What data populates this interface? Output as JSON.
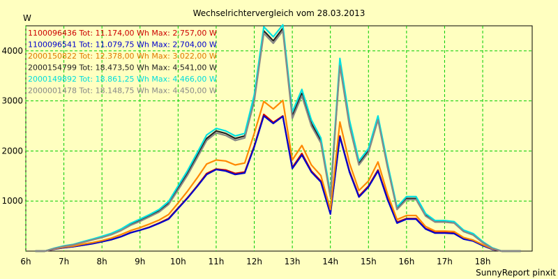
{
  "chart_data": {
    "type": "line",
    "title": "Wechselrichtervergleich vom 28.03.2013",
    "ylabel": "W",
    "footer": "SunnyReport pinxit",
    "ylim": [
      0,
      4500
    ],
    "yticks": [
      1000,
      2000,
      3000,
      4000
    ],
    "xlim": [
      6,
      19.3
    ],
    "xticks": [
      6,
      7,
      8,
      9,
      10,
      11,
      12,
      13,
      14,
      15,
      16,
      17,
      18
    ],
    "xtick_labels": [
      "6h",
      "7h",
      "8h",
      "9h",
      "10h",
      "11h",
      "12h",
      "13h",
      "14h",
      "15h",
      "16h",
      "17h",
      "18h"
    ],
    "grid": true,
    "legend_position": "top-left",
    "x": [
      6.25,
      6.5,
      6.75,
      7,
      7.25,
      7.5,
      7.75,
      8,
      8.25,
      8.5,
      8.75,
      9,
      9.25,
      9.5,
      9.75,
      10,
      10.25,
      10.5,
      10.75,
      11,
      11.25,
      11.5,
      11.75,
      12,
      12.25,
      12.5,
      12.75,
      13,
      13.25,
      13.5,
      13.75,
      14,
      14.25,
      14.5,
      14.75,
      15,
      15.25,
      15.5,
      15.75,
      16,
      16.25,
      16.5,
      16.75,
      17,
      17.25,
      17.5,
      17.75,
      18,
      18.25,
      18.5,
      18.75,
      19
    ],
    "series": [
      {
        "name": "1100096436",
        "tot": "Tot: 11.174,00 Wh",
        "max": "Max: 2.757,00 W",
        "color": "#cc0000",
        "values": [
          0,
          0,
          40,
          70,
          90,
          120,
          150,
          190,
          230,
          290,
          370,
          420,
          480,
          560,
          650,
          860,
          1070,
          1300,
          1550,
          1640,
          1620,
          1550,
          1580,
          2100,
          2730,
          2570,
          2700,
          1670,
          1950,
          1600,
          1400,
          760,
          2300,
          1600,
          1100,
          1300,
          1620,
          1050,
          580,
          650,
          650,
          450,
          370,
          370,
          360,
          250,
          210,
          120,
          40,
          0,
          0,
          0
        ],
        "label_color": "#cc0000"
      },
      {
        "name": "1100096541",
        "tot": "Tot: 11.079,75 Wh",
        "max": "Max: 2.704,00 W",
        "color": "#0000cc",
        "values": [
          0,
          0,
          38,
          68,
          88,
          118,
          148,
          188,
          228,
          288,
          365,
          418,
          475,
          555,
          640,
          850,
          1060,
          1290,
          1530,
          1630,
          1600,
          1530,
          1560,
          2080,
          2700,
          2550,
          2690,
          1650,
          1920,
          1580,
          1380,
          740,
          2280,
          1580,
          1080,
          1280,
          1600,
          1030,
          560,
          640,
          640,
          440,
          360,
          360,
          350,
          240,
          200,
          110,
          35,
          0,
          0,
          0
        ],
        "label_color": "#0000cc"
      },
      {
        "name": "2000150822",
        "tot": "Tot: 12.378,00 Wh",
        "max": "Max: 3.022,00 W",
        "color": "#ff8800",
        "values": [
          0,
          0,
          45,
          80,
          100,
          140,
          170,
          210,
          260,
          330,
          410,
          470,
          540,
          620,
          730,
          960,
          1200,
          1460,
          1740,
          1820,
          1800,
          1720,
          1760,
          2350,
          2990,
          2840,
          3010,
          1820,
          2110,
          1720,
          1510,
          830,
          2580,
          1760,
          1210,
          1400,
          1780,
          1140,
          630,
          710,
          710,
          490,
          400,
          400,
          390,
          270,
          220,
          130,
          45,
          0,
          0,
          0
        ],
        "label_color": "#e07800"
      },
      {
        "name": "2000154799",
        "tot": "Tot: 18.473,50 Wh",
        "max": "Max: 4.541,00 W",
        "color": "#222222",
        "values": [
          0,
          0,
          55,
          100,
          130,
          180,
          230,
          280,
          340,
          420,
          530,
          610,
          700,
          800,
          950,
          1250,
          1550,
          1900,
          2250,
          2400,
          2350,
          2250,
          2300,
          3050,
          4400,
          4200,
          4450,
          2700,
          3150,
          2550,
          2200,
          1100,
          3750,
          2550,
          1750,
          2000,
          2650,
          1700,
          850,
          1050,
          1050,
          720,
          590,
          590,
          570,
          400,
          330,
          180,
          60,
          0,
          0,
          0
        ],
        "label_color": "#222222"
      },
      {
        "name": "2000149892",
        "tot": "Tot: 18.861,25 Wh",
        "max": "Max: 4.466,00 W",
        "color": "#00e0e0",
        "values": [
          0,
          0,
          58,
          105,
          135,
          190,
          240,
          295,
          355,
          440,
          555,
          640,
          730,
          830,
          990,
          1300,
          1610,
          1960,
          2320,
          2450,
          2400,
          2300,
          2350,
          3120,
          4480,
          4280,
          4520,
          2780,
          3230,
          2620,
          2260,
          1150,
          3850,
          2620,
          1800,
          2050,
          2700,
          1750,
          880,
          1090,
          1090,
          750,
          610,
          610,
          590,
          420,
          350,
          190,
          65,
          0,
          0,
          0
        ],
        "label_color": "#00dddd"
      },
      {
        "name": "2000001478",
        "tot": "Tot: 18.148,75 Wh",
        "max": "Max: 4.450,00 W",
        "color": "#888888",
        "values": [
          0,
          0,
          52,
          95,
          125,
          175,
          225,
          270,
          330,
          410,
          515,
          595,
          685,
          780,
          930,
          1220,
          1520,
          1860,
          2210,
          2360,
          2310,
          2210,
          2260,
          2990,
          4350,
          4150,
          4400,
          2650,
          3100,
          2500,
          2160,
          1080,
          3700,
          2500,
          1720,
          1970,
          2620,
          1670,
          830,
          1030,
          1030,
          700,
          580,
          580,
          560,
          390,
          320,
          170,
          55,
          0,
          0,
          0
        ],
        "label_color": "#888888"
      }
    ]
  }
}
